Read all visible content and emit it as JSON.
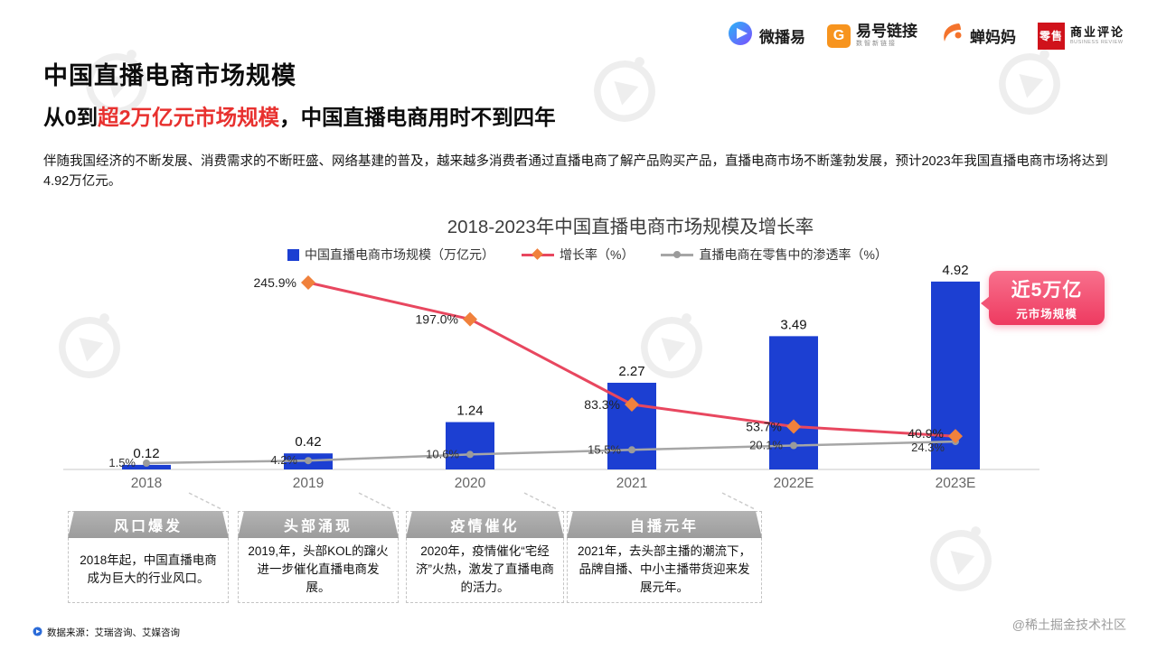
{
  "page": {
    "title": "中国直播电商市场规模",
    "subtitle_prefix": "从0到",
    "subtitle_highlight": "超2万亿元市场规模",
    "subtitle_suffix": "，中国直播电商用时不到四年",
    "body": "伴随我国经济的不断发展、消费需求的不断旺盛、网络基建的普及，越来越多消费者通过直播电商了解产品购买产品，直播电商市场不断蓬勃发展，预计2023年我国直播电商市场将达到4.92万亿元。",
    "source": "数据来源：艾瑞咨询、艾媒咨询",
    "credit": "@稀土掘金技术社区"
  },
  "logos": {
    "weiboyi": "微播易",
    "yihao": "易号链接",
    "yihao_tagline": "数智新链接",
    "chanmama": "蝉妈妈",
    "retail_box": "零售",
    "retail_name": "商业评论",
    "retail_sub": "BUSINESS REVIEW"
  },
  "colors": {
    "accent_red": "#e8312f",
    "bar_blue": "#1c3fd2",
    "growth_line": "#e8475f",
    "growth_marker": "#f0813c",
    "penetration_gray": "#a6a6a6",
    "callout_pink": "#ee3a60",
    "timeline_gray": "#a7a7a7"
  },
  "icons": {
    "weiboyi_play_icon": "play-triangle-in-gradient-circle",
    "yihao_link_icon": "orange-rounded-square-G",
    "chanmama_bird_icon": "orange-swirl-bird",
    "retail_badge_icon": "red-square-with-text",
    "watermark_icon": "weiboyi-logo-outline"
  },
  "chart_data": {
    "type": "bar+line",
    "title": "2018-2023年中国直播电商市场规模及增长率",
    "xlabel": "",
    "ylabel": "",
    "grid": false,
    "legend_position": "top",
    "categories": [
      "2018",
      "2019",
      "2020",
      "2021",
      "2022E",
      "2023E"
    ],
    "ylim_bar": [
      0,
      5
    ],
    "ylim_pct": [
      0,
      260
    ],
    "series": [
      {
        "name": "中国直播电商市场规模（万亿元）",
        "type": "bar",
        "color": "#1c3fd2",
        "values": [
          0.12,
          0.42,
          1.24,
          2.27,
          3.49,
          4.92
        ]
      },
      {
        "name": "增长率（%）",
        "type": "line",
        "marker": "diamond",
        "color": "#e8475f",
        "marker_color": "#f0813c",
        "values": [
          null,
          245.9,
          197.0,
          83.3,
          53.7,
          40.9
        ]
      },
      {
        "name": "直播电商在零售中的渗透率（%）",
        "type": "line",
        "marker": "circle",
        "color": "#a6a6a6",
        "marker_color": "#9b9b9b",
        "values": [
          1.5,
          4.2,
          10.6,
          15.5,
          20.1,
          24.3
        ]
      }
    ],
    "annotation": {
      "line1": "近5万亿",
      "line2": "元市场规模",
      "target": "2023E"
    }
  },
  "timeline": {
    "items": [
      {
        "header": "风口爆发",
        "text": "2018年起，中国直播电商成为巨大的行业风口。"
      },
      {
        "header": "头部涌现",
        "text": "2019,年，头部KOL的蹿火进一步催化直播电商发展。"
      },
      {
        "header": "疫情催化",
        "text": "2020年，疫情催化“宅经济”火热，激发了直播电商的活力。"
      },
      {
        "header": "自播元年",
        "text": "2021年，去头部主播的潮流下，品牌自播、中小主播带货迎来发展元年。"
      }
    ]
  }
}
